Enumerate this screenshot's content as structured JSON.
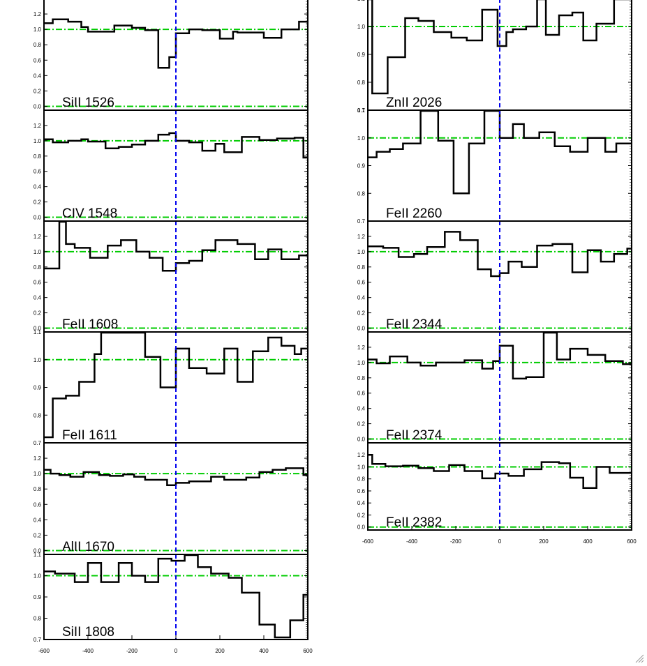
{
  "chart_data": [
    {
      "type": "line",
      "label": "SiII 1526",
      "xlim": [
        -600,
        600
      ],
      "ylim": [
        -0.05,
        1.4
      ],
      "yticks": [
        "0.0",
        "0.2",
        "0.4",
        "0.6",
        "0.8",
        "1.0",
        "1.2"
      ],
      "ytick_values": [
        0.0,
        0.2,
        0.4,
        0.6,
        0.8,
        1.0,
        1.2
      ],
      "xticks": [],
      "step_x": [
        -600,
        -560,
        -490,
        -430,
        -400,
        -280,
        -200,
        -140,
        -80,
        -30,
        0,
        60,
        120,
        200,
        260,
        280,
        400,
        480,
        560,
        600
      ],
      "flux": [
        1.08,
        1.13,
        1.1,
        1.03,
        0.97,
        1.05,
        1.02,
        0.99,
        0.5,
        0.64,
        0.95,
        1.0,
        0.99,
        0.88,
        0.97,
        0.96,
        0.89,
        1.0,
        1.1,
        1.05
      ],
      "continuum": 1.0,
      "zero": 0.0
    },
    {
      "type": "line",
      "label": "CIV 1548",
      "xlim": [
        -600,
        600
      ],
      "ylim": [
        -0.05,
        1.4
      ],
      "yticks": [
        "0.0",
        "0.2",
        "0.4",
        "0.6",
        "0.8",
        "1.0",
        "1.2"
      ],
      "ytick_values": [
        0.0,
        0.2,
        0.4,
        0.6,
        0.8,
        1.0,
        1.2
      ],
      "xticks": [],
      "step_x": [
        -600,
        -560,
        -490,
        -430,
        -400,
        -320,
        -260,
        -200,
        -140,
        -80,
        -30,
        0,
        60,
        120,
        180,
        220,
        300,
        380,
        460,
        540,
        580
      ],
      "flux": [
        1.02,
        0.98,
        1.0,
        1.02,
        0.99,
        0.9,
        0.92,
        0.95,
        1.0,
        1.08,
        1.1,
        1.0,
        0.98,
        0.87,
        0.96,
        0.85,
        1.05,
        1.01,
        1.03,
        1.04,
        0.78
      ],
      "continuum": 1.0,
      "zero": 0.0
    },
    {
      "type": "line",
      "label": "FeII 1608",
      "xlim": [
        -600,
        600
      ],
      "ylim": [
        -0.05,
        1.4
      ],
      "yticks": [
        "0.0",
        "0.2",
        "0.4",
        "0.6",
        "0.8",
        "1.0",
        "1.2"
      ],
      "ytick_values": [
        0.0,
        0.2,
        0.4,
        0.6,
        0.8,
        1.0,
        1.2
      ],
      "xticks": [],
      "step_x": [
        -600,
        -530,
        -500,
        -460,
        -390,
        -310,
        -250,
        -180,
        -120,
        -60,
        0,
        60,
        120,
        180,
        280,
        360,
        420,
        480,
        560
      ],
      "flux": [
        0.78,
        1.42,
        1.1,
        1.05,
        0.92,
        1.08,
        1.15,
        1.0,
        0.92,
        0.75,
        0.85,
        0.88,
        1.02,
        1.15,
        1.1,
        0.9,
        1.03,
        0.9,
        0.95
      ],
      "continuum": 1.0,
      "zero": 0.0
    },
    {
      "type": "line",
      "label": "FeII 1611",
      "xlim": [
        -600,
        600
      ],
      "ylim": [
        0.7,
        1.1
      ],
      "yticks": [
        "0.7",
        "0.8",
        "0.9",
        "1.0",
        "1.1"
      ],
      "ytick_values": [
        0.7,
        0.8,
        0.9,
        1.0,
        1.1
      ],
      "xticks": [],
      "step_x": [
        -600,
        -560,
        -500,
        -440,
        -370,
        -340,
        -210,
        -140,
        -70,
        0,
        60,
        140,
        220,
        280,
        350,
        420,
        480,
        540,
        570
      ],
      "flux": [
        0.72,
        0.86,
        0.87,
        0.92,
        1.02,
        1.15,
        1.12,
        1.01,
        0.9,
        1.04,
        0.97,
        0.95,
        1.04,
        0.92,
        1.03,
        1.08,
        1.05,
        1.02,
        1.04
      ],
      "continuum": 1.0,
      "zero": null
    },
    {
      "type": "line",
      "label": "AlII 1670",
      "xlim": [
        -600,
        600
      ],
      "ylim": [
        -0.05,
        1.4
      ],
      "yticks": [
        "0.0",
        "0.2",
        "0.4",
        "0.6",
        "0.8",
        "1.0",
        "1.2"
      ],
      "ytick_values": [
        0.0,
        0.2,
        0.4,
        0.6,
        0.8,
        1.0,
        1.2
      ],
      "xticks": [],
      "step_x": [
        -600,
        -570,
        -530,
        -480,
        -420,
        -350,
        -300,
        -240,
        -190,
        -140,
        -40,
        0,
        60,
        160,
        220,
        320,
        380,
        440,
        500,
        580
      ],
      "flux": [
        1.05,
        1.0,
        0.98,
        0.96,
        1.02,
        0.98,
        0.97,
        0.99,
        0.96,
        0.92,
        0.85,
        0.88,
        0.9,
        0.96,
        0.92,
        0.95,
        1.02,
        1.05,
        1.07,
        0.98
      ],
      "continuum": 1.0,
      "zero": 0.0
    },
    {
      "type": "line",
      "label": "SiII 1808",
      "xlim": [
        -600,
        600
      ],
      "ylim": [
        0.7,
        1.1
      ],
      "yticks": [
        "0.7",
        "0.8",
        "0.9",
        "1.0",
        "1.1"
      ],
      "ytick_values": [
        0.7,
        0.8,
        0.9,
        1.0,
        1.1
      ],
      "xticks": [
        "-600",
        "-400",
        "-200",
        "0",
        "200",
        "400",
        "600"
      ],
      "xtick_values": [
        -600,
        -400,
        -200,
        0,
        200,
        400,
        600
      ],
      "step_x": [
        -600,
        -550,
        -460,
        -400,
        -340,
        -260,
        -200,
        -140,
        -80,
        -20,
        40,
        100,
        160,
        240,
        300,
        380,
        450,
        520,
        580
      ],
      "flux": [
        1.02,
        1.01,
        0.97,
        1.06,
        0.97,
        1.06,
        1.0,
        0.97,
        1.08,
        1.07,
        1.11,
        1.04,
        1.01,
        0.99,
        0.92,
        0.77,
        0.71,
        0.79,
        0.91
      ],
      "continuum": 1.0,
      "zero": null
    },
    {
      "type": "line",
      "label": "ZnII 2026",
      "xlim": [
        -600,
        600
      ],
      "ylim": [
        0.7,
        1.1
      ],
      "yticks": [
        "0.7",
        "0.8",
        "0.9",
        "1.0",
        "1.1"
      ],
      "ytick_values": [
        0.7,
        0.8,
        0.9,
        1.0,
        1.1
      ],
      "xticks": [],
      "step_x": [
        -600,
        -580,
        -510,
        -430,
        -370,
        -300,
        -220,
        -150,
        -80,
        -10,
        30,
        60,
        120,
        170,
        210,
        270,
        330,
        380,
        440,
        520,
        580
      ],
      "flux": [
        1.15,
        0.76,
        0.89,
        1.03,
        1.02,
        0.98,
        0.96,
        0.95,
        1.06,
        0.93,
        0.98,
        0.99,
        1.0,
        1.13,
        0.97,
        1.04,
        1.05,
        0.95,
        1.01,
        1.1,
        1.15
      ],
      "continuum": 1.0,
      "zero": null
    },
    {
      "type": "line",
      "label": "FeII 2260",
      "xlim": [
        -600,
        600
      ],
      "ylim": [
        0.7,
        1.1
      ],
      "yticks": [
        "0.7",
        "0.8",
        "0.9",
        "1.0",
        "1.1"
      ],
      "ytick_values": [
        0.7,
        0.8,
        0.9,
        1.0,
        1.1
      ],
      "xticks": [],
      "step_x": [
        -600,
        -560,
        -500,
        -440,
        -360,
        -280,
        -210,
        -140,
        -70,
        0,
        60,
        110,
        180,
        250,
        320,
        400,
        480,
        530
      ],
      "flux": [
        0.93,
        0.95,
        0.96,
        0.98,
        1.15,
        0.99,
        0.8,
        0.98,
        1.15,
        1.0,
        1.05,
        1.0,
        1.02,
        0.97,
        0.95,
        1.0,
        0.95,
        0.98
      ],
      "continuum": 1.0,
      "zero": null
    },
    {
      "type": "line",
      "label": "FeII 2344",
      "xlim": [
        -600,
        600
      ],
      "ylim": [
        -0.05,
        1.4
      ],
      "yticks": [
        "0.0",
        "0.2",
        "0.4",
        "0.6",
        "0.8",
        "1.0",
        "1.2"
      ],
      "ytick_values": [
        0.0,
        0.2,
        0.4,
        0.6,
        0.8,
        1.0,
        1.2
      ],
      "xticks": [],
      "step_x": [
        -600,
        -530,
        -460,
        -390,
        -330,
        -250,
        -180,
        -100,
        -40,
        0,
        40,
        100,
        170,
        240,
        330,
        400,
        460,
        520,
        580
      ],
      "flux": [
        1.07,
        1.05,
        0.93,
        0.97,
        1.06,
        1.26,
        1.15,
        0.77,
        0.68,
        0.72,
        0.87,
        0.8,
        1.08,
        1.1,
        0.73,
        1.02,
        0.87,
        0.97,
        1.04
      ],
      "continuum": 1.0,
      "zero": 0.0
    },
    {
      "type": "line",
      "label": "FeII 2374",
      "xlim": [
        -600,
        600
      ],
      "ylim": [
        -0.05,
        1.4
      ],
      "yticks": [
        "0.0",
        "0.2",
        "0.4",
        "0.6",
        "0.8",
        "1.0",
        "1.2"
      ],
      "ytick_values": [
        0.0,
        0.2,
        0.4,
        0.6,
        0.8,
        1.0,
        1.2
      ],
      "xticks": [],
      "step_x": [
        -600,
        -560,
        -500,
        -420,
        -360,
        -290,
        -160,
        -80,
        -30,
        0,
        60,
        120,
        200,
        260,
        320,
        400,
        480,
        560
      ],
      "flux": [
        1.04,
        0.99,
        1.08,
        1.0,
        0.96,
        1.0,
        1.03,
        0.92,
        1.02,
        1.22,
        0.79,
        0.81,
        1.55,
        1.04,
        1.18,
        1.1,
        1.02,
        0.98
      ],
      "continuum": 1.0,
      "zero": 0.0
    },
    {
      "type": "line",
      "label": "FeII 2382",
      "xlim": [
        -600,
        600
      ],
      "ylim": [
        -0.05,
        1.4
      ],
      "yticks": [
        "0.0",
        "0.2",
        "0.4",
        "0.6",
        "0.8",
        "1.0",
        "1.2"
      ],
      "ytick_values": [
        0.0,
        0.2,
        0.4,
        0.6,
        0.8,
        1.0,
        1.2
      ],
      "xticks": [
        "-600",
        "-400",
        "-200",
        "0",
        "200",
        "400",
        "600"
      ],
      "xtick_values": [
        -600,
        -400,
        -200,
        0,
        200,
        400,
        600
      ],
      "step_x": [
        -600,
        -580,
        -520,
        -440,
        -370,
        -300,
        -230,
        -160,
        -80,
        -20,
        40,
        110,
        190,
        270,
        320,
        380,
        440,
        500,
        560
      ],
      "flux": [
        1.2,
        1.05,
        1.01,
        1.02,
        0.98,
        0.93,
        1.03,
        0.93,
        0.81,
        0.89,
        0.85,
        0.96,
        1.08,
        1.06,
        0.82,
        0.65,
        1.0,
        0.9,
        0.9
      ],
      "continuum": 1.0,
      "zero": 0.0
    }
  ],
  "colors": {
    "spectrum": "#000000",
    "continuum": "#00cc00",
    "zero_velocity": "#0000ee",
    "background": "#ffffff"
  },
  "icons": {
    "resize_grip": "resize-grip-icon"
  }
}
